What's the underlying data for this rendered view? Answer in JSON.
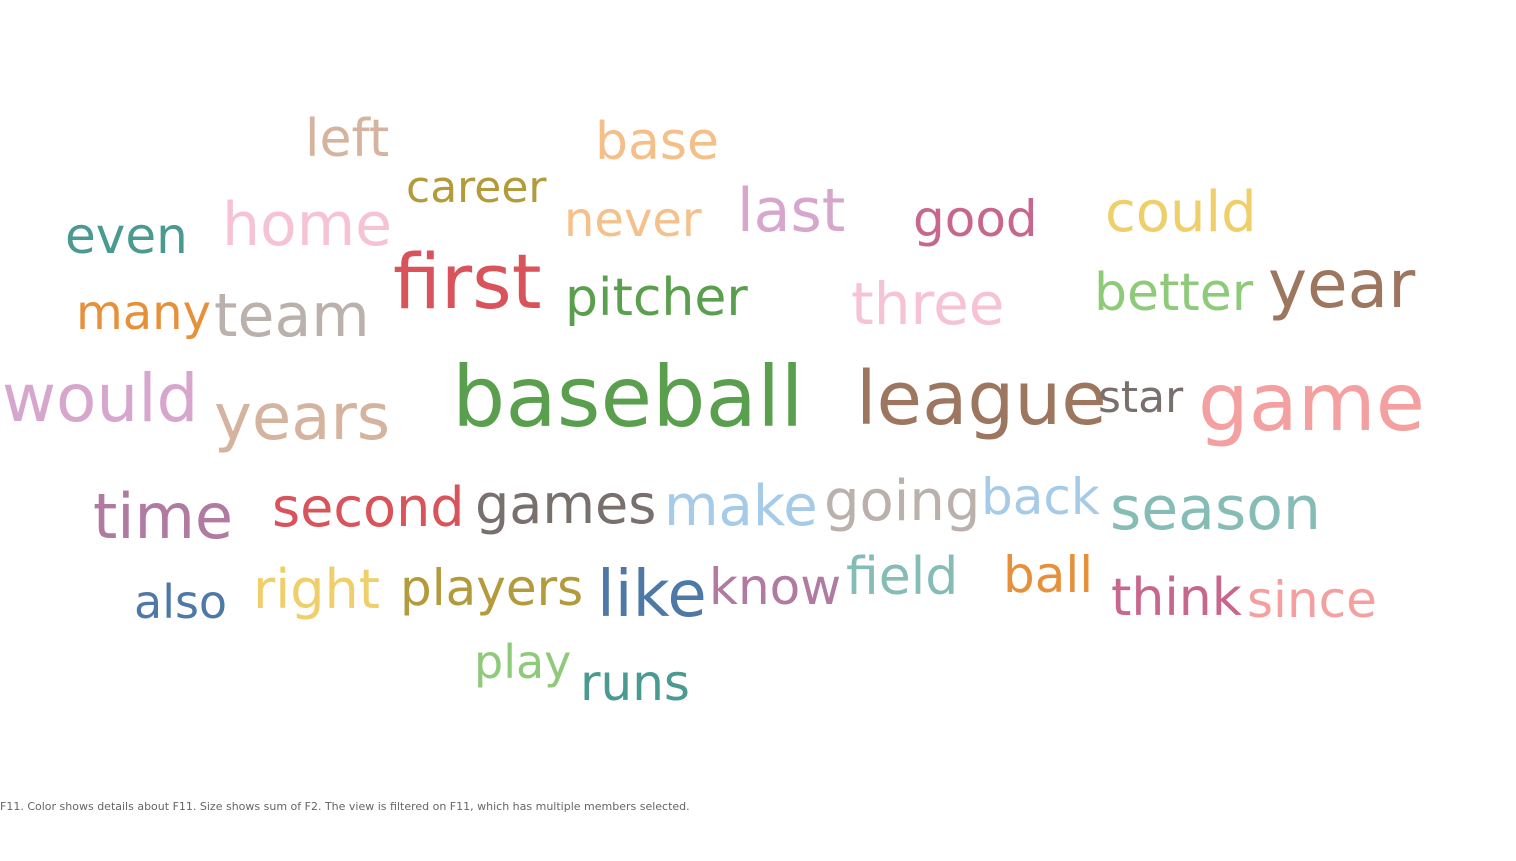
{
  "caption": "F11.  Color shows details about F11.  Size shows sum of F2. The view is filtered on F11, which has multiple members selected.",
  "chart_data": {
    "type": "wordcloud",
    "size_measure": "sum of F2",
    "color_dimension": "F11",
    "words": [
      {
        "text": "left",
        "color": "#d4b49e",
        "weight": 3
      },
      {
        "text": "base",
        "color": "#f5bf8a",
        "weight": 3
      },
      {
        "text": "career",
        "color": "#b39b3c",
        "weight": 3
      },
      {
        "text": "even",
        "color": "#4a9a91",
        "weight": 3
      },
      {
        "text": "home",
        "color": "#f6c3d4",
        "weight": 4
      },
      {
        "text": "never",
        "color": "#f5c08a",
        "weight": 3
      },
      {
        "text": "last",
        "color": "#d6a6cd",
        "weight": 4
      },
      {
        "text": "good",
        "color": "#c7678d",
        "weight": 3
      },
      {
        "text": "could",
        "color": "#efcf6a",
        "weight": 3
      },
      {
        "text": "first",
        "color": "#d9535b",
        "weight": 5
      },
      {
        "text": "many",
        "color": "#e6913a",
        "weight": 3
      },
      {
        "text": "team",
        "color": "#bab0ac",
        "weight": 4
      },
      {
        "text": "pitcher",
        "color": "#5a9f4d",
        "weight": 3
      },
      {
        "text": "three",
        "color": "#f6c3d4",
        "weight": 4
      },
      {
        "text": "better",
        "color": "#8fca7a",
        "weight": 3
      },
      {
        "text": "year",
        "color": "#9d7660",
        "weight": 5
      },
      {
        "text": "would",
        "color": "#d6a6cd",
        "weight": 5
      },
      {
        "text": "years",
        "color": "#d4b49e",
        "weight": 4
      },
      {
        "text": "baseball",
        "color": "#5a9f4d",
        "weight": 6
      },
      {
        "text": "league",
        "color": "#9d7660",
        "weight": 5
      },
      {
        "text": "star",
        "color": "#79706e",
        "weight": 3
      },
      {
        "text": "game",
        "color": "#f4a0a0",
        "weight": 6
      },
      {
        "text": "time",
        "color": "#b07aa1",
        "weight": 4
      },
      {
        "text": "second",
        "color": "#d9535b",
        "weight": 4
      },
      {
        "text": "games",
        "color": "#79706e",
        "weight": 4
      },
      {
        "text": "make",
        "color": "#a6cbe8",
        "weight": 4
      },
      {
        "text": "going",
        "color": "#bab0ac",
        "weight": 4
      },
      {
        "text": "back",
        "color": "#a6cbe8",
        "weight": 4
      },
      {
        "text": "season",
        "color": "#86bcb6",
        "weight": 5
      },
      {
        "text": "also",
        "color": "#4e79a7",
        "weight": 3
      },
      {
        "text": "right",
        "color": "#efcf6a",
        "weight": 4
      },
      {
        "text": "players",
        "color": "#b39b3c",
        "weight": 4
      },
      {
        "text": "like",
        "color": "#4e79a7",
        "weight": 4
      },
      {
        "text": "know",
        "color": "#b07aa1",
        "weight": 4
      },
      {
        "text": "field",
        "color": "#86bcb6",
        "weight": 4
      },
      {
        "text": "ball",
        "color": "#e6913a",
        "weight": 3
      },
      {
        "text": "think",
        "color": "#c7678d",
        "weight": 4
      },
      {
        "text": "since",
        "color": "#f4a0a0",
        "weight": 3
      },
      {
        "text": "play",
        "color": "#8fca7a",
        "weight": 3
      },
      {
        "text": "runs",
        "color": "#4a9a91",
        "weight": 3
      }
    ]
  }
}
